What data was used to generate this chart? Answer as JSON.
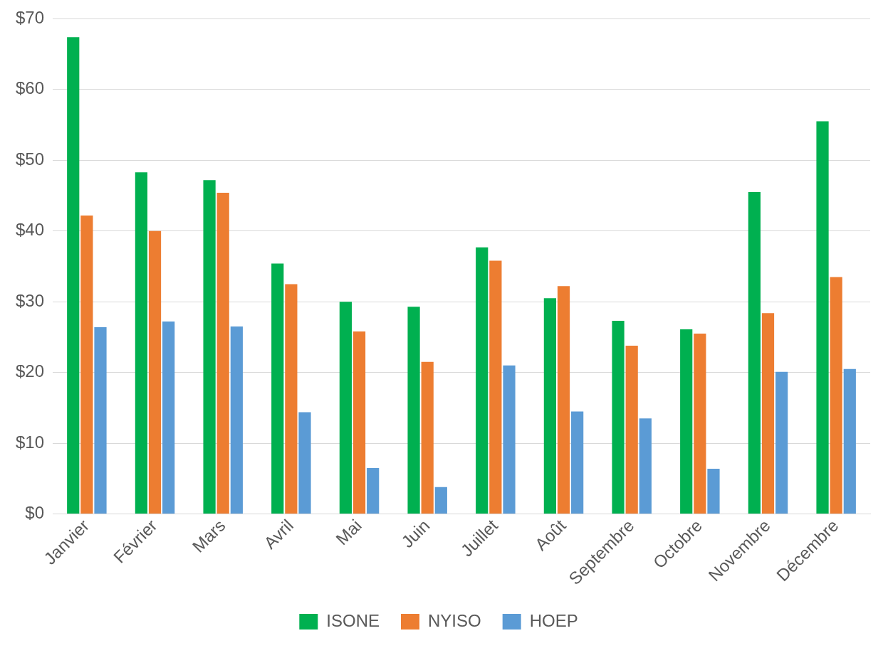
{
  "chart_data": {
    "type": "bar",
    "categories": [
      "Janvier",
      "Février",
      "Mars",
      "Avril",
      "Mai",
      "Juin",
      "Juillet",
      "Août",
      "Septembre",
      "Octobre",
      "Novembre",
      "Décembre"
    ],
    "series": [
      {
        "name": "ISONE",
        "color": "#00b050",
        "values": [
          67.4,
          48.3,
          47.2,
          35.4,
          30.0,
          29.3,
          37.7,
          30.5,
          27.3,
          26.1,
          45.5,
          55.5
        ]
      },
      {
        "name": "NYISO",
        "color": "#ed7d31",
        "values": [
          42.2,
          40.0,
          45.4,
          32.5,
          25.8,
          21.5,
          35.8,
          32.2,
          23.8,
          25.5,
          28.4,
          33.5
        ]
      },
      {
        "name": "HOEP",
        "color": "#5b9bd5",
        "values": [
          26.4,
          27.2,
          26.5,
          14.4,
          6.5,
          3.8,
          21.0,
          14.5,
          13.5,
          6.4,
          20.1,
          20.5
        ]
      }
    ],
    "ylim": [
      0,
      70
    ],
    "yticks": [
      {
        "value": 0,
        "label": "$0"
      },
      {
        "value": 10,
        "label": "$10"
      },
      {
        "value": 20,
        "label": "$20"
      },
      {
        "value": 30,
        "label": "$30"
      },
      {
        "value": 40,
        "label": "$40"
      },
      {
        "value": 50,
        "label": "$50"
      },
      {
        "value": 60,
        "label": "$60"
      },
      {
        "value": 70,
        "label": "$70"
      }
    ],
    "grid": "y",
    "legend": "bottom"
  }
}
